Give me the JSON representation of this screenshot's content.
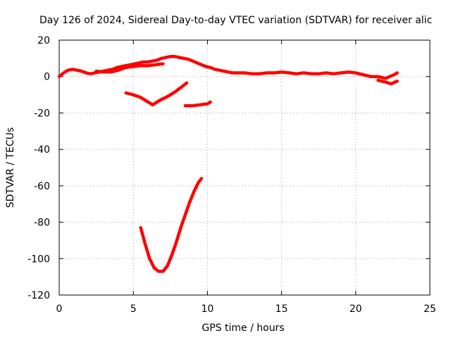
{
  "chart_data": {
    "type": "line",
    "title": "Day 126 of 2024, Sidereal Day-to-day VTEC variation (SDTVAR) for receiver alic",
    "xlabel": "GPS time / hours",
    "ylabel": "SDTVAR / TECUs",
    "xlim": [
      0,
      25
    ],
    "ylim": [
      -120,
      20
    ],
    "xticks": [
      0,
      5,
      10,
      15,
      20,
      25
    ],
    "yticks": [
      20,
      0,
      -20,
      -40,
      -60,
      -80,
      -100,
      -120
    ],
    "grid": true,
    "legend": "none",
    "color": "#ff0000",
    "series": [
      {
        "name": "main-trace",
        "x": [
          0,
          0.3,
          0.6,
          0.9,
          1.2,
          1.5,
          1.8,
          2.1,
          2.4,
          2.7,
          3.0,
          3.3,
          3.6,
          3.9,
          4.2,
          4.5,
          4.8,
          5.1,
          5.4,
          5.7,
          6.0,
          6.3,
          6.6,
          6.9,
          7.2,
          7.5,
          7.8,
          8.1,
          8.4,
          8.7,
          9.0,
          9.3,
          9.6,
          9.9,
          10.2,
          10.5,
          10.8,
          11.1,
          11.4,
          11.7,
          12.0,
          12.5,
          13.0,
          13.5,
          14.0,
          14.5,
          15.0,
          15.5,
          16.0,
          16.5,
          17.0,
          17.5,
          18.0,
          18.5,
          19.0,
          19.5,
          20.0,
          20.5,
          21.0,
          21.5,
          22.0,
          22.3,
          22.6,
          22.8
        ],
        "y": [
          0,
          2,
          3.5,
          4,
          3.5,
          3,
          2,
          1.5,
          2,
          2.5,
          3,
          3.5,
          4,
          5,
          5.5,
          6,
          6.5,
          7,
          7.5,
          8,
          8,
          8.5,
          9,
          10,
          10.5,
          11,
          11,
          10.5,
          10,
          9.5,
          8.5,
          7.5,
          6.5,
          5.5,
          5,
          4,
          3.5,
          3,
          2.5,
          2,
          2,
          2,
          1.5,
          1.5,
          2,
          2,
          2.5,
          2,
          1.5,
          2,
          1.5,
          1.5,
          2,
          1.5,
          2,
          2.5,
          2,
          1,
          0,
          0,
          -1,
          0,
          1,
          2
        ]
      },
      {
        "name": "parallel-band",
        "x": [
          2.5,
          3.0,
          3.5,
          4.0,
          4.5,
          5.0,
          5.5,
          6.0,
          6.5,
          7.0
        ],
        "y": [
          3,
          2.5,
          2.5,
          3.5,
          5,
          5.5,
          6,
          6,
          6.5,
          7
        ]
      },
      {
        "name": "tail-segment",
        "x": [
          21.5,
          22.0,
          22.4,
          22.8
        ],
        "y": [
          -2,
          -3,
          -4,
          -2.5
        ]
      },
      {
        "name": "segment-a",
        "x": [
          4.5,
          5.0,
          5.5,
          6.0,
          6.3
        ],
        "y": [
          -9,
          -10,
          -11.5,
          -14,
          -15.5
        ]
      },
      {
        "name": "segment-b",
        "x": [
          6.3,
          6.8,
          7.3,
          7.8,
          8.3,
          8.6
        ],
        "y": [
          -15.5,
          -13,
          -11,
          -8.5,
          -5.5,
          -3.5
        ]
      },
      {
        "name": "segment-c",
        "x": [
          8.5,
          9.0,
          9.5,
          10.0,
          10.2
        ],
        "y": [
          -16,
          -16,
          -15.5,
          -15,
          -14
        ]
      },
      {
        "name": "v-trace",
        "x": [
          5.5,
          5.8,
          6.1,
          6.4,
          6.7,
          7.0,
          7.3,
          7.6,
          7.9,
          8.2,
          8.5,
          8.8,
          9.1,
          9.4,
          9.6
        ],
        "y": [
          -83,
          -92,
          -100,
          -105,
          -107,
          -107,
          -104,
          -98,
          -91,
          -83,
          -76,
          -69,
          -63,
          -58,
          -56
        ]
      }
    ]
  }
}
